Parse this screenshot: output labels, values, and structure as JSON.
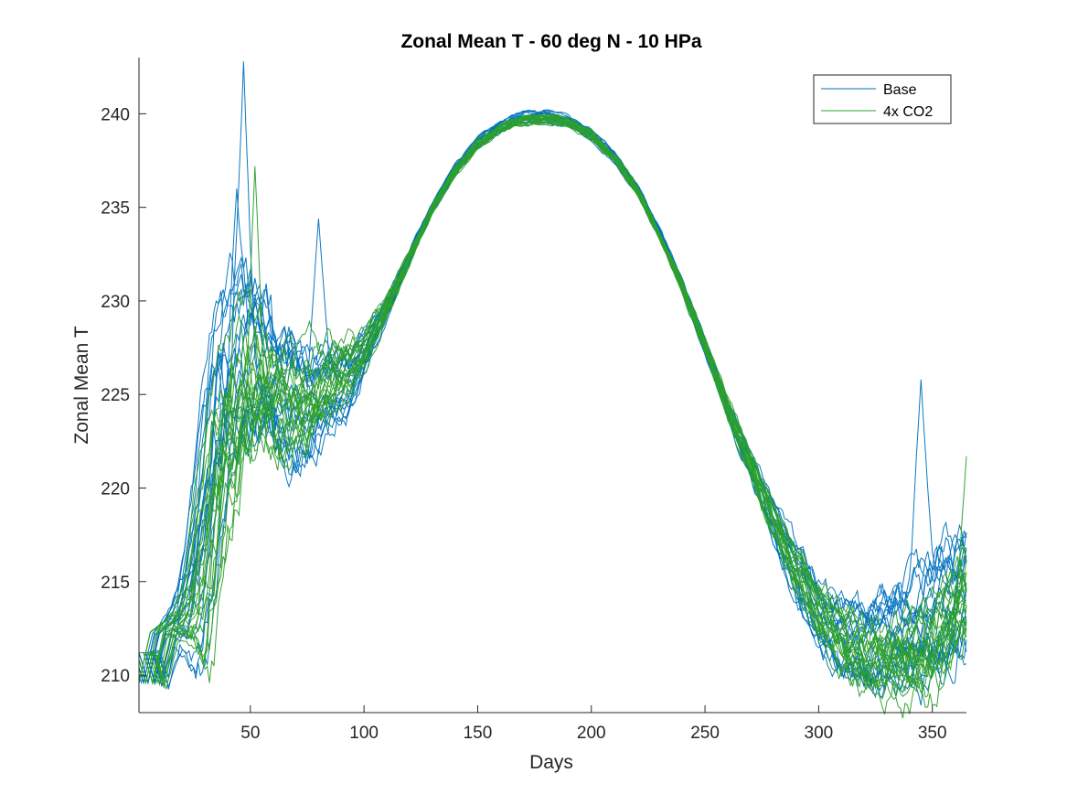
{
  "chart_data": {
    "type": "line",
    "title": "Zonal Mean T - 60 deg N - 10 HPa",
    "xlabel": "Days",
    "ylabel": "Zonal Mean T",
    "xlim": [
      1,
      365
    ],
    "ylim": [
      208,
      243
    ],
    "xticks": [
      50,
      100,
      150,
      200,
      250,
      300,
      350
    ],
    "yticks": [
      210,
      215,
      220,
      225,
      230,
      235,
      240
    ],
    "grid": false,
    "legend": {
      "location": "top-right",
      "entries": [
        {
          "name": "Base",
          "color": "#0072BD"
        },
        {
          "name": "4x CO2",
          "color": "#2ca02c"
        }
      ]
    },
    "series": [
      {
        "name": "Base",
        "color": "#0072BD",
        "ensemble_members": 20,
        "x": [
          1,
          5,
          10,
          15,
          20,
          25,
          30,
          35,
          40,
          45,
          50,
          55,
          60,
          65,
          70,
          75,
          80,
          85,
          90,
          95,
          100,
          110,
          120,
          130,
          140,
          150,
          160,
          170,
          180,
          190,
          200,
          210,
          220,
          230,
          240,
          250,
          260,
          270,
          280,
          290,
          300,
          310,
          320,
          330,
          340,
          350,
          355,
          360,
          365
        ],
        "mean": [
          211.2,
          209.6,
          212.3,
          213.0,
          214.0,
          217.0,
          221.5,
          225.5,
          226.0,
          226.5,
          227.0,
          226.5,
          225.5,
          225.0,
          224.8,
          224.5,
          225.0,
          225.3,
          225.5,
          226.0,
          227.2,
          229.6,
          232.4,
          235.0,
          237.0,
          238.5,
          239.3,
          239.8,
          239.9,
          239.6,
          238.9,
          237.7,
          236.0,
          233.6,
          230.8,
          227.6,
          224.2,
          221.3,
          218.2,
          215.6,
          213.2,
          212.0,
          211.8,
          212.0,
          212.5,
          213.0,
          213.8,
          214.0,
          214.5
        ],
        "spread": [
          0,
          0,
          0.2,
          0.6,
          1.5,
          3.0,
          4.5,
          5.0,
          5.0,
          5.0,
          4.5,
          4.0,
          4.0,
          3.8,
          3.5,
          3.0,
          2.8,
          2.5,
          2.2,
          1.8,
          1.2,
          0.6,
          0.4,
          0.3,
          0.3,
          0.3,
          0.3,
          0.3,
          0.3,
          0.3,
          0.3,
          0.3,
          0.3,
          0.3,
          0.4,
          0.4,
          0.6,
          0.8,
          1.2,
          1.6,
          2.0,
          2.2,
          2.5,
          2.8,
          3.2,
          3.5,
          3.6,
          3.6,
          3.6
        ],
        "peak_values": [
          {
            "x": 47,
            "y": 242.8
          },
          {
            "x": 44,
            "y": 236.0
          },
          {
            "x": 80,
            "y": 234.4
          },
          {
            "x": 345,
            "y": 225.8
          }
        ]
      },
      {
        "name": "4x CO2",
        "color": "#2ca02c",
        "ensemble_members": 20,
        "x": [
          1,
          5,
          10,
          15,
          20,
          25,
          30,
          35,
          40,
          45,
          50,
          55,
          60,
          65,
          70,
          75,
          80,
          85,
          90,
          95,
          100,
          110,
          120,
          130,
          140,
          150,
          160,
          170,
          180,
          190,
          200,
          210,
          220,
          230,
          240,
          250,
          260,
          270,
          280,
          290,
          300,
          310,
          320,
          330,
          340,
          350,
          355,
          360,
          365
        ],
        "mean": [
          211.2,
          209.6,
          212.3,
          212.8,
          213.2,
          214.5,
          218.5,
          222.5,
          224.5,
          225.5,
          226.0,
          226.0,
          225.5,
          225.3,
          225.2,
          225.2,
          225.6,
          226.2,
          226.6,
          227.0,
          227.6,
          229.8,
          232.4,
          235.0,
          237.0,
          238.4,
          239.3,
          239.7,
          239.8,
          239.6,
          238.9,
          237.7,
          236.0,
          233.6,
          230.9,
          227.7,
          224.4,
          221.5,
          218.6,
          216.0,
          213.8,
          212.4,
          211.6,
          211.4,
          211.5,
          212.0,
          213.0,
          214.0,
          215.0
        ],
        "spread": [
          0,
          0,
          0.2,
          0.5,
          1.0,
          2.0,
          4.0,
          5.0,
          5.0,
          5.0,
          4.8,
          4.2,
          4.0,
          3.8,
          3.5,
          3.2,
          3.0,
          2.6,
          2.2,
          1.8,
          1.4,
          0.7,
          0.4,
          0.3,
          0.3,
          0.3,
          0.3,
          0.3,
          0.3,
          0.3,
          0.3,
          0.3,
          0.3,
          0.3,
          0.4,
          0.5,
          0.7,
          0.9,
          1.3,
          1.6,
          2.0,
          2.2,
          2.5,
          2.8,
          3.0,
          3.2,
          3.3,
          3.4,
          3.5
        ],
        "peak_values": [
          {
            "x": 52,
            "y": 237.2
          },
          {
            "x": 365,
            "y": 221.7
          }
        ]
      }
    ]
  }
}
